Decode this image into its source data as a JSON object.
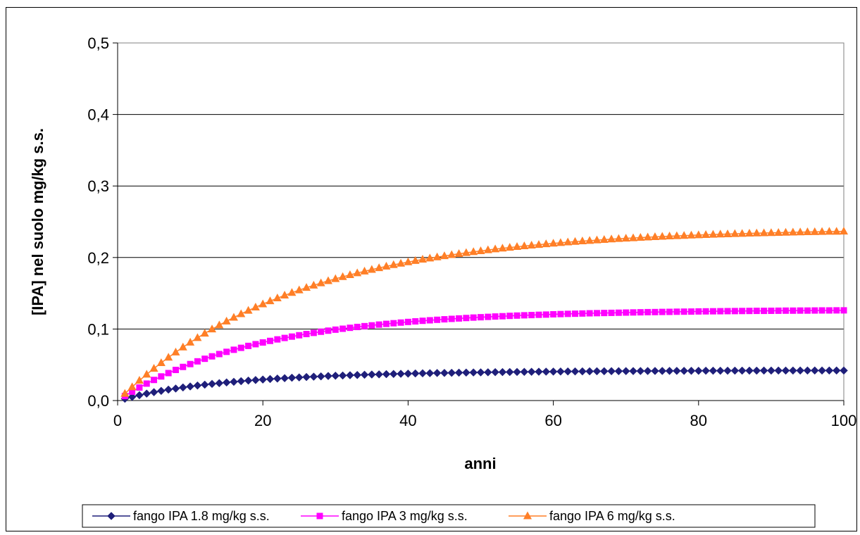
{
  "chart_data": {
    "type": "line",
    "title": "",
    "xlabel": "anni",
    "ylabel": "[IPA] nel suolo mg/kg s.s.",
    "xlim": [
      0,
      100
    ],
    "ylim": [
      0,
      0.5
    ],
    "xticks": [
      0,
      20,
      40,
      60,
      80,
      100
    ],
    "xtick_labels": [
      "0",
      "20",
      "40",
      "60",
      "80",
      "100"
    ],
    "yticks": [
      0,
      0.1,
      0.2,
      0.3,
      0.4,
      0.5
    ],
    "ytick_labels": [
      "0,0",
      "0,1",
      "0,2",
      "0,3",
      "0,4",
      "0,5"
    ],
    "grid": "horizontal",
    "legend": "bottom",
    "x": [
      1,
      2,
      3,
      4,
      5,
      6,
      7,
      8,
      9,
      10,
      11,
      12,
      13,
      14,
      15,
      16,
      17,
      18,
      19,
      20,
      21,
      22,
      23,
      24,
      25,
      26,
      27,
      28,
      29,
      30,
      31,
      32,
      33,
      34,
      35,
      36,
      37,
      38,
      39,
      40,
      41,
      42,
      43,
      44,
      45,
      46,
      47,
      48,
      49,
      50,
      51,
      52,
      53,
      54,
      55,
      56,
      57,
      58,
      59,
      60,
      61,
      62,
      63,
      64,
      65,
      66,
      67,
      68,
      69,
      70,
      71,
      72,
      73,
      74,
      75,
      76,
      77,
      78,
      79,
      80,
      81,
      82,
      83,
      84,
      85,
      86,
      87,
      88,
      89,
      90,
      91,
      92,
      93,
      94,
      95,
      96,
      97,
      98,
      99,
      100
    ],
    "series": [
      {
        "name": "fango IPA 1.8 mg/kg s.s.",
        "color": "#1f1f7a",
        "marker": "diamond",
        "values": [
          0.0025,
          0.0051,
          0.0075,
          0.0097,
          0.0117,
          0.0135,
          0.0153,
          0.0168,
          0.0183,
          0.0197,
          0.021,
          0.0222,
          0.0233,
          0.0243,
          0.0253,
          0.0262,
          0.0271,
          0.0279,
          0.0287,
          0.0294,
          0.0301,
          0.0307,
          0.0313,
          0.0319,
          0.0324,
          0.0329,
          0.0334,
          0.0338,
          0.0343,
          0.0347,
          0.035,
          0.0354,
          0.0357,
          0.0361,
          0.0364,
          0.0366,
          0.0369,
          0.0372,
          0.0374,
          0.0376,
          0.0379,
          0.0381,
          0.0383,
          0.0385,
          0.0386,
          0.0388,
          0.039,
          0.0391,
          0.0393,
          0.0394,
          0.0395,
          0.0397,
          0.0398,
          0.0399,
          0.04,
          0.0401,
          0.0402,
          0.0403,
          0.0404,
          0.0405,
          0.0406,
          0.0407,
          0.0407,
          0.0408,
          0.0409,
          0.041,
          0.041,
          0.0411,
          0.0411,
          0.0412,
          0.0412,
          0.0413,
          0.0413,
          0.0414,
          0.0414,
          0.0415,
          0.0415,
          0.0415,
          0.0416,
          0.0416,
          0.0417,
          0.0417,
          0.0417,
          0.0417,
          0.0418,
          0.0418,
          0.0418,
          0.0418,
          0.0419,
          0.0419,
          0.0419,
          0.0419,
          0.0419,
          0.042,
          0.042,
          0.042,
          0.042,
          0.042,
          0.042,
          0.042
        ]
      },
      {
        "name": "fango IPA 3 mg/kg s.s.",
        "color": "#ff00ff",
        "marker": "square",
        "values": [
          0.0063,
          0.0124,
          0.0182,
          0.0237,
          0.0288,
          0.0337,
          0.0384,
          0.0428,
          0.047,
          0.051,
          0.0548,
          0.0584,
          0.0618,
          0.065,
          0.0681,
          0.071,
          0.0737,
          0.0764,
          0.0788,
          0.0812,
          0.0834,
          0.0855,
          0.0875,
          0.0894,
          0.0913,
          0.093,
          0.0946,
          0.0962,
          0.0977,
          0.0991,
          0.1004,
          0.1017,
          0.1029,
          0.104,
          0.1051,
          0.1062,
          0.1072,
          0.1081,
          0.109,
          0.1099,
          0.1107,
          0.1115,
          0.1122,
          0.1129,
          0.1136,
          0.1142,
          0.1148,
          0.1154,
          0.116,
          0.1165,
          0.117,
          0.1175,
          0.1179,
          0.1184,
          0.1188,
          0.1192,
          0.1195,
          0.1199,
          0.1202,
          0.1206,
          0.1209,
          0.1212,
          0.1214,
          0.1217,
          0.122,
          0.1222,
          0.1224,
          0.1226,
          0.1228,
          0.123,
          0.1232,
          0.1234,
          0.1236,
          0.1237,
          0.1239,
          0.124,
          0.1242,
          0.1243,
          0.1244,
          0.1246,
          0.1247,
          0.1248,
          0.1249,
          0.125,
          0.1251,
          0.1252,
          0.1253,
          0.1254,
          0.1254,
          0.1255,
          0.1256,
          0.1257,
          0.1257,
          0.1258,
          0.1258,
          0.1259,
          0.126,
          0.126,
          0.1261,
          0.1261
        ]
      },
      {
        "name": "fango IPA 6 mg/kg s.s.",
        "color": "#ff7f27",
        "marker": "triangle",
        "values": [
          0.0097,
          0.019,
          0.028,
          0.0366,
          0.0448,
          0.0527,
          0.0603,
          0.0676,
          0.0746,
          0.0813,
          0.0877,
          0.0939,
          0.0998,
          0.1054,
          0.1109,
          0.1161,
          0.1211,
          0.1259,
          0.1304,
          0.1349,
          0.1391,
          0.1432,
          0.1471,
          0.1508,
          0.1544,
          0.1578,
          0.1611,
          0.1643,
          0.1673,
          0.1702,
          0.173,
          0.1757,
          0.1783,
          0.1807,
          0.1831,
          0.1854,
          0.1876,
          0.1897,
          0.1917,
          0.1936,
          0.1955,
          0.1973,
          0.199,
          0.2006,
          0.2022,
          0.2037,
          0.2052,
          0.2066,
          0.2079,
          0.2092,
          0.2105,
          0.2117,
          0.2128,
          0.2139,
          0.215,
          0.216,
          0.217,
          0.2179,
          0.2189,
          0.2197,
          0.2206,
          0.2214,
          0.2222,
          0.2229,
          0.2236,
          0.2243,
          0.2249,
          0.2256,
          0.2262,
          0.2268,
          0.2273,
          0.2279,
          0.2284,
          0.2289,
          0.2293,
          0.2298,
          0.2302,
          0.2306,
          0.231,
          0.2314,
          0.2318,
          0.2322,
          0.2325,
          0.2328,
          0.2331,
          0.2334,
          0.2337,
          0.234,
          0.2343,
          0.2345,
          0.2348,
          0.235,
          0.2352,
          0.2355,
          0.2357,
          0.2359,
          0.2361,
          0.2363,
          0.2364,
          0.2366
        ]
      }
    ]
  }
}
